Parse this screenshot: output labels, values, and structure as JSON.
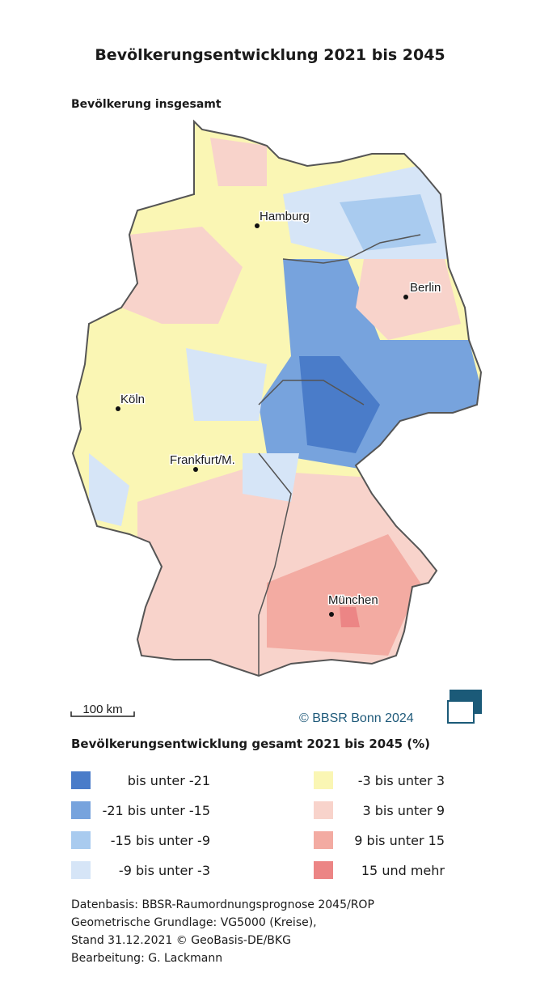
{
  "title": "Bevölkerungsentwicklung 2021 bis 2045",
  "subtitle": "Bevölkerung insgesamt",
  "cities": [
    "Hamburg",
    "Berlin",
    "Köln",
    "Frankfurt/M.",
    "München"
  ],
  "scale_bar": "100 km",
  "copyright": "© BBSR Bonn 2024",
  "legend": {
    "title": "Bevölkerungsentwicklung gesamt 2021 bis 2045 (%)",
    "items": [
      {
        "label": "bis unter -21",
        "color": "#4a7cc9"
      },
      {
        "label": "-21 bis unter -15",
        "color": "#77a3dd"
      },
      {
        "label": "-15 bis unter -9",
        "color": "#a9cbef"
      },
      {
        "label": "-9 bis unter -3",
        "color": "#d6e5f7"
      },
      {
        "label": "-3 bis unter 3",
        "color": "#faf6b4"
      },
      {
        "label": "3 bis unter 9",
        "color": "#f8d3cb"
      },
      {
        "label": "9 bis unter 15",
        "color": "#f3aba2"
      },
      {
        "label": "15 und mehr",
        "color": "#ec8585"
      }
    ]
  },
  "source": [
    "Datenbasis: BBSR-Raumordnungsprognose 2045/ROP",
    "Geometrische Grundlage: VG5000 (Kreise),",
    "Stand 31.12.2021 © GeoBasis-DE/BKG",
    "Bearbeitung: G. Lackmann"
  ]
}
